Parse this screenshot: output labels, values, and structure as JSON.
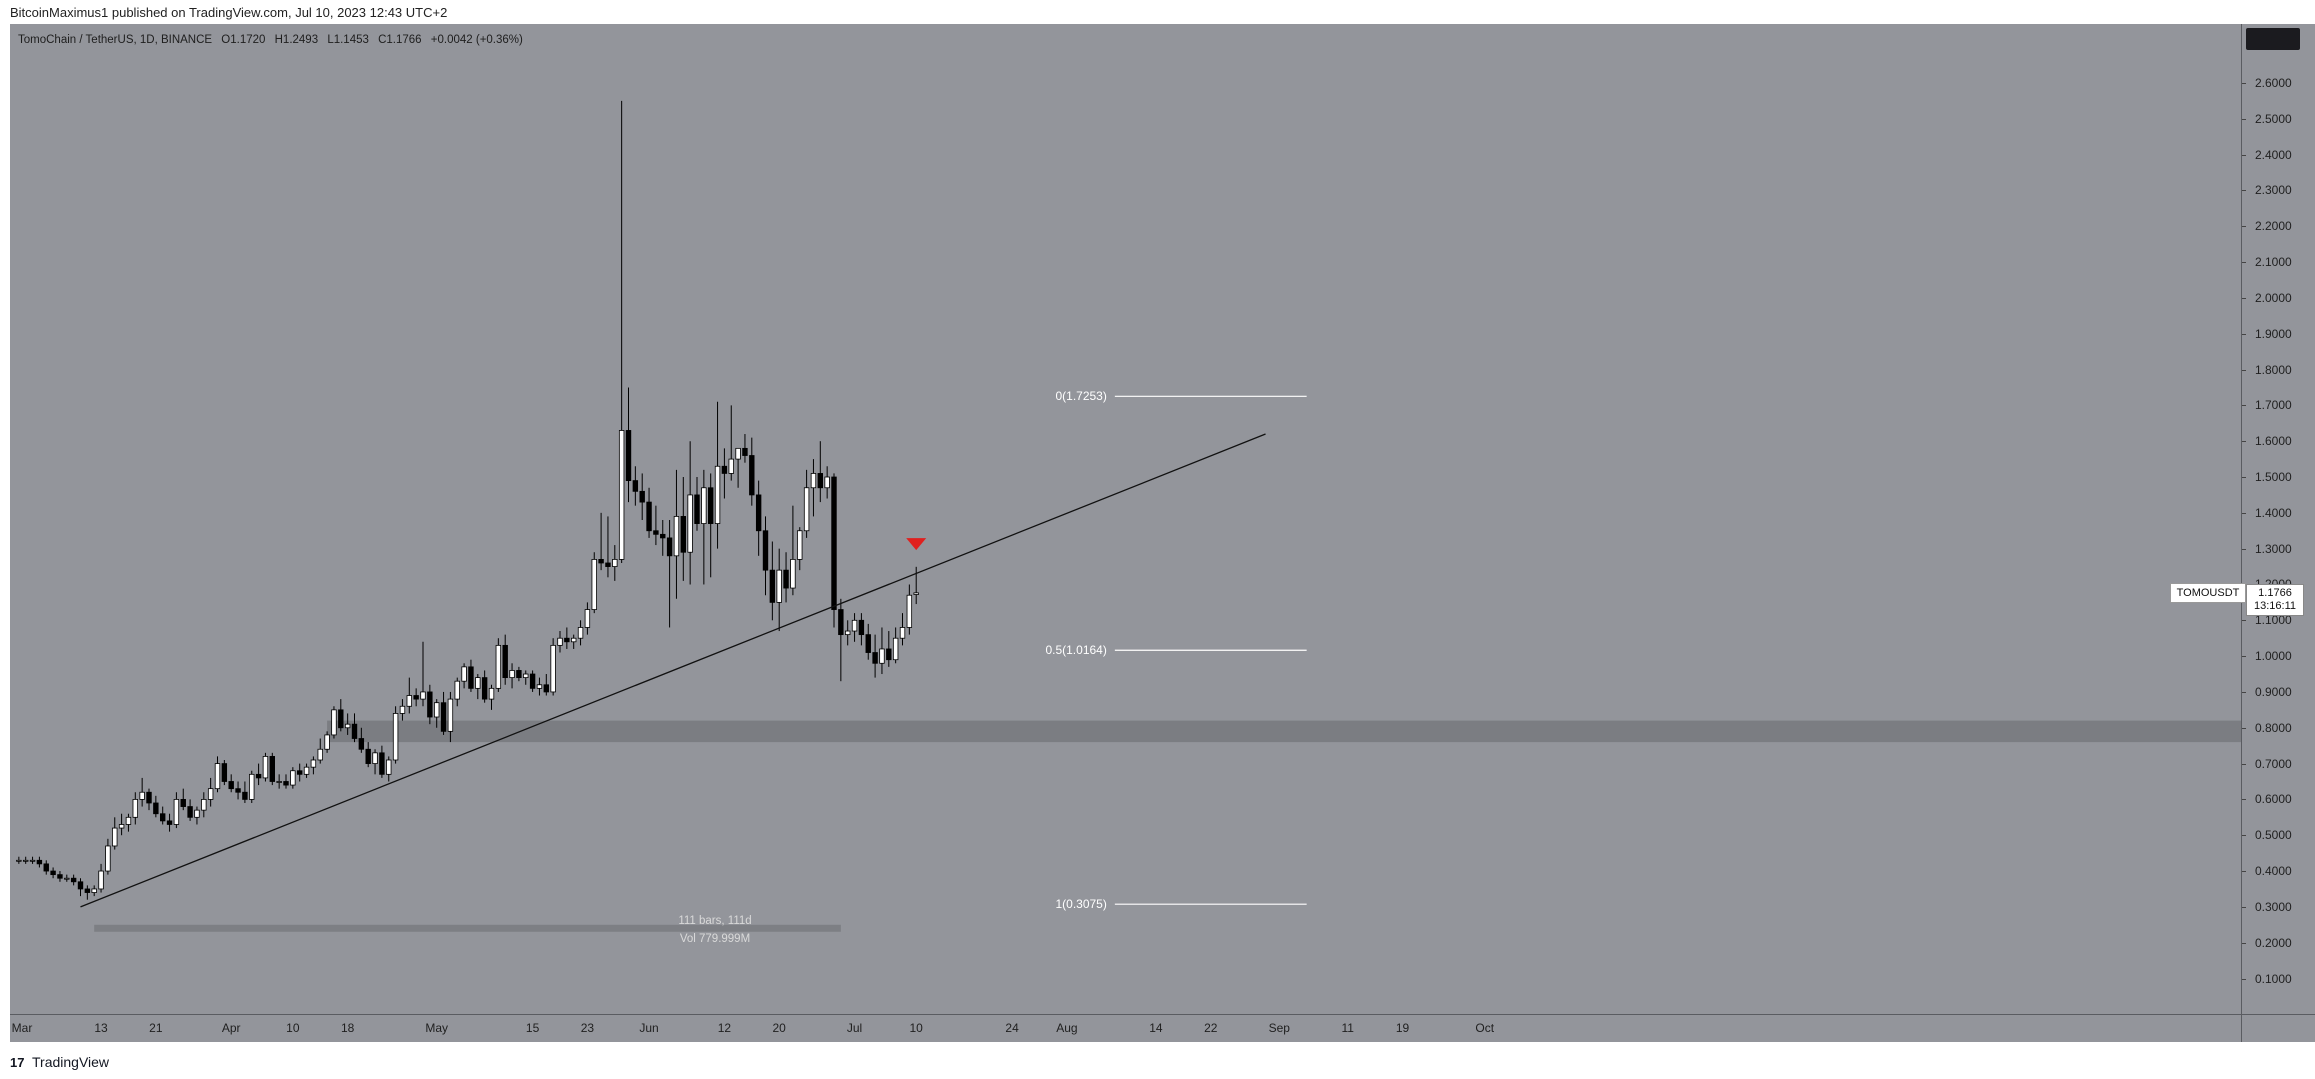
{
  "header": {
    "publisher_text": "BitcoinMaximus1 published on TradingView.com, Jul 10, 2023 12:43 UTC+2"
  },
  "legend": {
    "symbol": "TomoChain / TetherUS, 1D, BINANCE",
    "open": "O1.1720",
    "high": "H1.2493",
    "low": "L1.1453",
    "close": "C1.1766",
    "change": "+0.0042 (+0.36%)"
  },
  "price_axis": {
    "ticks": [
      "2.6000",
      "2.5000",
      "2.4000",
      "2.3000",
      "2.2000",
      "2.1000",
      "2.0000",
      "1.9000",
      "1.8000",
      "1.7000",
      "1.6000",
      "1.5000",
      "1.4000",
      "1.3000",
      "1.2000",
      "1.1000",
      "1.0000",
      "0.9000",
      "0.8000",
      "0.7000",
      "0.6000",
      "0.5000",
      "0.4000",
      "0.3000",
      "0.2000",
      "0.1000"
    ],
    "current_symbol": "TOMOUSDT",
    "current_price": "1.1766",
    "countdown": "13:16:11"
  },
  "time_axis": {
    "ticks": [
      "Mar",
      "13",
      "21",
      "Apr",
      "10",
      "18",
      "May",
      "15",
      "23",
      "Jun",
      "12",
      "20",
      "Jul",
      "10",
      "24",
      "Aug",
      "14",
      "22",
      "Sep",
      "11",
      "19",
      "Oct"
    ]
  },
  "fibonacci": [
    {
      "label": "0(1.7253)",
      "ratio": 0,
      "price": 1.7253
    },
    {
      "label": "0.5(1.0164)",
      "ratio": 0.5,
      "price": 1.0164
    },
    {
      "label": "1(0.3075)",
      "ratio": 1,
      "price": 0.3075
    }
  ],
  "measure": {
    "bars": "111 bars, 111d",
    "volume": "Vol 779.999M"
  },
  "footer": {
    "brand": "TradingView",
    "logo": "17"
  },
  "colors": {
    "background": "#93959b",
    "bull_candle": "#ffffff",
    "bear_candle": "#000000",
    "wick": "#000000",
    "support_zone": "#7b7d82",
    "trendline": "#111111",
    "fib_line": "#ffffff",
    "signal_arrow": "#e0201e"
  },
  "chart_data": {
    "type": "candlestick",
    "title": "TomoChain / TetherUS, 1D, BINANCE",
    "ylim": [
      0.04,
      2.72
    ],
    "support_zone": [
      0.76,
      0.82
    ],
    "trendline": {
      "from": [
        "2023-03-10",
        0.3
      ],
      "to": [
        "2023-08-30",
        1.62
      ]
    },
    "signal": {
      "type": "bearish-arrow",
      "date": "2023-07-10",
      "price": 1.31
    },
    "candles": [
      [
        "2023-03-01",
        0.43,
        0.44,
        0.42,
        0.43
      ],
      [
        "2023-03-02",
        0.43,
        0.44,
        0.42,
        0.43
      ],
      [
        "2023-03-03",
        0.43,
        0.44,
        0.42,
        0.43
      ],
      [
        "2023-03-04",
        0.43,
        0.44,
        0.41,
        0.42
      ],
      [
        "2023-03-05",
        0.42,
        0.43,
        0.39,
        0.4
      ],
      [
        "2023-03-06",
        0.4,
        0.41,
        0.38,
        0.39
      ],
      [
        "2023-03-07",
        0.39,
        0.4,
        0.37,
        0.38
      ],
      [
        "2023-03-08",
        0.38,
        0.39,
        0.37,
        0.38
      ],
      [
        "2023-03-09",
        0.38,
        0.39,
        0.36,
        0.37
      ],
      [
        "2023-03-10",
        0.37,
        0.38,
        0.33,
        0.35
      ],
      [
        "2023-03-11",
        0.35,
        0.36,
        0.32,
        0.34
      ],
      [
        "2023-03-12",
        0.34,
        0.36,
        0.33,
        0.35
      ],
      [
        "2023-03-13",
        0.35,
        0.42,
        0.34,
        0.4
      ],
      [
        "2023-03-14",
        0.4,
        0.49,
        0.39,
        0.47
      ],
      [
        "2023-03-15",
        0.47,
        0.55,
        0.46,
        0.52
      ],
      [
        "2023-03-16",
        0.52,
        0.56,
        0.5,
        0.53
      ],
      [
        "2023-03-17",
        0.53,
        0.56,
        0.51,
        0.55
      ],
      [
        "2023-03-18",
        0.55,
        0.62,
        0.53,
        0.6
      ],
      [
        "2023-03-19",
        0.6,
        0.66,
        0.58,
        0.62
      ],
      [
        "2023-03-20",
        0.62,
        0.63,
        0.57,
        0.59
      ],
      [
        "2023-03-21",
        0.59,
        0.61,
        0.55,
        0.56
      ],
      [
        "2023-03-22",
        0.56,
        0.58,
        0.53,
        0.54
      ],
      [
        "2023-03-23",
        0.54,
        0.56,
        0.51,
        0.53
      ],
      [
        "2023-03-24",
        0.53,
        0.62,
        0.52,
        0.6
      ],
      [
        "2023-03-25",
        0.6,
        0.63,
        0.57,
        0.58
      ],
      [
        "2023-03-26",
        0.58,
        0.6,
        0.54,
        0.55
      ],
      [
        "2023-03-27",
        0.55,
        0.58,
        0.53,
        0.57
      ],
      [
        "2023-03-28",
        0.57,
        0.62,
        0.55,
        0.6
      ],
      [
        "2023-03-29",
        0.6,
        0.66,
        0.58,
        0.63
      ],
      [
        "2023-03-30",
        0.63,
        0.72,
        0.62,
        0.7
      ],
      [
        "2023-03-31",
        0.7,
        0.71,
        0.64,
        0.65
      ],
      [
        "2023-04-01",
        0.65,
        0.67,
        0.62,
        0.63
      ],
      [
        "2023-04-02",
        0.63,
        0.65,
        0.6,
        0.62
      ],
      [
        "2023-04-03",
        0.62,
        0.65,
        0.59,
        0.6
      ],
      [
        "2023-04-04",
        0.6,
        0.68,
        0.59,
        0.67
      ],
      [
        "2023-04-05",
        0.67,
        0.7,
        0.64,
        0.66
      ],
      [
        "2023-04-06",
        0.66,
        0.73,
        0.65,
        0.72
      ],
      [
        "2023-04-07",
        0.72,
        0.73,
        0.64,
        0.65
      ],
      [
        "2023-04-08",
        0.65,
        0.67,
        0.63,
        0.65
      ],
      [
        "2023-04-09",
        0.65,
        0.67,
        0.63,
        0.64
      ],
      [
        "2023-04-10",
        0.64,
        0.69,
        0.63,
        0.68
      ],
      [
        "2023-04-11",
        0.68,
        0.7,
        0.65,
        0.67
      ],
      [
        "2023-04-12",
        0.67,
        0.7,
        0.66,
        0.69
      ],
      [
        "2023-04-13",
        0.69,
        0.72,
        0.67,
        0.71
      ],
      [
        "2023-04-14",
        0.71,
        0.77,
        0.7,
        0.74
      ],
      [
        "2023-04-15",
        0.74,
        0.79,
        0.73,
        0.78
      ],
      [
        "2023-04-16",
        0.78,
        0.86,
        0.77,
        0.85
      ],
      [
        "2023-04-17",
        0.85,
        0.88,
        0.79,
        0.8
      ],
      [
        "2023-04-18",
        0.8,
        0.84,
        0.78,
        0.81
      ],
      [
        "2023-04-19",
        0.81,
        0.84,
        0.76,
        0.77
      ],
      [
        "2023-04-20",
        0.77,
        0.8,
        0.73,
        0.74
      ],
      [
        "2023-04-21",
        0.74,
        0.76,
        0.69,
        0.7
      ],
      [
        "2023-04-22",
        0.7,
        0.74,
        0.67,
        0.73
      ],
      [
        "2023-04-23",
        0.73,
        0.75,
        0.66,
        0.67
      ],
      [
        "2023-04-24",
        0.67,
        0.72,
        0.65,
        0.71
      ],
      [
        "2023-04-25",
        0.71,
        0.86,
        0.7,
        0.84
      ],
      [
        "2023-04-26",
        0.84,
        0.88,
        0.82,
        0.86
      ],
      [
        "2023-04-27",
        0.86,
        0.94,
        0.84,
        0.89
      ],
      [
        "2023-04-28",
        0.89,
        0.91,
        0.86,
        0.88
      ],
      [
        "2023-04-29",
        0.88,
        1.04,
        0.86,
        0.9
      ],
      [
        "2023-04-30",
        0.9,
        0.92,
        0.81,
        0.83
      ],
      [
        "2023-05-01",
        0.83,
        0.88,
        0.8,
        0.87
      ],
      [
        "2023-05-02",
        0.87,
        0.9,
        0.78,
        0.79
      ],
      [
        "2023-05-03",
        0.79,
        0.9,
        0.76,
        0.88
      ],
      [
        "2023-05-04",
        0.88,
        0.94,
        0.86,
        0.93
      ],
      [
        "2023-05-05",
        0.93,
        0.98,
        0.91,
        0.97
      ],
      [
        "2023-05-06",
        0.97,
        0.99,
        0.9,
        0.91
      ],
      [
        "2023-05-07",
        0.91,
        0.95,
        0.88,
        0.94
      ],
      [
        "2023-05-08",
        0.94,
        0.96,
        0.87,
        0.88
      ],
      [
        "2023-05-09",
        0.88,
        0.92,
        0.85,
        0.91
      ],
      [
        "2023-05-10",
        0.91,
        1.05,
        0.9,
        1.03
      ],
      [
        "2023-05-11",
        1.03,
        1.06,
        0.92,
        0.94
      ],
      [
        "2023-05-12",
        0.94,
        0.98,
        0.91,
        0.96
      ],
      [
        "2023-05-13",
        0.96,
        0.97,
        0.93,
        0.94
      ],
      [
        "2023-05-14",
        0.94,
        0.96,
        0.92,
        0.95
      ],
      [
        "2023-05-15",
        0.95,
        0.96,
        0.9,
        0.91
      ],
      [
        "2023-05-16",
        0.91,
        0.94,
        0.89,
        0.92
      ],
      [
        "2023-05-17",
        0.92,
        0.95,
        0.89,
        0.9
      ],
      [
        "2023-05-18",
        0.9,
        1.05,
        0.89,
        1.03
      ],
      [
        "2023-05-19",
        1.03,
        1.07,
        1.01,
        1.05
      ],
      [
        "2023-05-20",
        1.05,
        1.08,
        1.02,
        1.04
      ],
      [
        "2023-05-21",
        1.04,
        1.06,
        1.02,
        1.05
      ],
      [
        "2023-05-22",
        1.05,
        1.1,
        1.03,
        1.08
      ],
      [
        "2023-05-23",
        1.08,
        1.15,
        1.06,
        1.13
      ],
      [
        "2023-05-24",
        1.13,
        1.29,
        1.12,
        1.27
      ],
      [
        "2023-05-25",
        1.27,
        1.4,
        1.24,
        1.26
      ],
      [
        "2023-05-26",
        1.26,
        1.39,
        1.22,
        1.25
      ],
      [
        "2023-05-27",
        1.25,
        1.31,
        1.21,
        1.27
      ],
      [
        "2023-05-28",
        1.27,
        2.55,
        1.26,
        1.63
      ],
      [
        "2023-05-29",
        1.63,
        1.75,
        1.43,
        1.49
      ],
      [
        "2023-05-30",
        1.49,
        1.53,
        1.42,
        1.46
      ],
      [
        "2023-05-31",
        1.46,
        1.51,
        1.38,
        1.43
      ],
      [
        "2023-06-01",
        1.43,
        1.47,
        1.33,
        1.35
      ],
      [
        "2023-06-02",
        1.35,
        1.42,
        1.31,
        1.34
      ],
      [
        "2023-06-03",
        1.34,
        1.38,
        1.28,
        1.33
      ],
      [
        "2023-06-04",
        1.33,
        1.38,
        1.08,
        1.28
      ],
      [
        "2023-06-05",
        1.28,
        1.52,
        1.16,
        1.39
      ],
      [
        "2023-06-06",
        1.39,
        1.5,
        1.21,
        1.29
      ],
      [
        "2023-06-07",
        1.29,
        1.6,
        1.2,
        1.45
      ],
      [
        "2023-06-08",
        1.45,
        1.5,
        1.35,
        1.37
      ],
      [
        "2023-06-09",
        1.37,
        1.52,
        1.2,
        1.47
      ],
      [
        "2023-06-10",
        1.47,
        1.51,
        1.22,
        1.37
      ],
      [
        "2023-06-11",
        1.37,
        1.71,
        1.3,
        1.53
      ],
      [
        "2023-06-12",
        1.53,
        1.58,
        1.44,
        1.51
      ],
      [
        "2023-06-13",
        1.51,
        1.7,
        1.49,
        1.55
      ],
      [
        "2023-06-14",
        1.55,
        1.58,
        1.47,
        1.58
      ],
      [
        "2023-06-15",
        1.58,
        1.62,
        1.54,
        1.56
      ],
      [
        "2023-06-16",
        1.56,
        1.61,
        1.42,
        1.45
      ],
      [
        "2023-06-17",
        1.45,
        1.49,
        1.28,
        1.35
      ],
      [
        "2023-06-18",
        1.35,
        1.39,
        1.17,
        1.24
      ],
      [
        "2023-06-19",
        1.24,
        1.32,
        1.1,
        1.15
      ],
      [
        "2023-06-20",
        1.15,
        1.3,
        1.07,
        1.24
      ],
      [
        "2023-06-21",
        1.24,
        1.29,
        1.15,
        1.19
      ],
      [
        "2023-06-22",
        1.19,
        1.42,
        1.17,
        1.27
      ],
      [
        "2023-06-23",
        1.27,
        1.36,
        1.24,
        1.35
      ],
      [
        "2023-06-24",
        1.35,
        1.52,
        1.33,
        1.47
      ],
      [
        "2023-06-25",
        1.47,
        1.55,
        1.39,
        1.51
      ],
      [
        "2023-06-26",
        1.51,
        1.6,
        1.43,
        1.47
      ],
      [
        "2023-06-27",
        1.47,
        1.53,
        1.44,
        1.5
      ],
      [
        "2023-06-28",
        1.5,
        1.51,
        1.08,
        1.13
      ],
      [
        "2023-06-29",
        1.13,
        1.16,
        0.93,
        1.06
      ],
      [
        "2023-06-30",
        1.06,
        1.1,
        1.03,
        1.07
      ],
      [
        "2023-07-01",
        1.07,
        1.12,
        1.04,
        1.1
      ],
      [
        "2023-07-02",
        1.1,
        1.12,
        1.03,
        1.06
      ],
      [
        "2023-07-03",
        1.06,
        1.09,
        0.99,
        1.01
      ],
      [
        "2023-07-04",
        1.01,
        1.06,
        0.94,
        0.98
      ],
      [
        "2023-07-05",
        0.98,
        1.08,
        0.95,
        1.02
      ],
      [
        "2023-07-06",
        1.02,
        1.07,
        0.97,
        0.99
      ],
      [
        "2023-07-07",
        0.99,
        1.08,
        0.98,
        1.05
      ],
      [
        "2023-07-08",
        1.05,
        1.12,
        1.03,
        1.08
      ],
      [
        "2023-07-09",
        1.08,
        1.2,
        1.06,
        1.17
      ],
      [
        "2023-07-10",
        1.172,
        1.2493,
        1.1453,
        1.1766
      ]
    ]
  }
}
